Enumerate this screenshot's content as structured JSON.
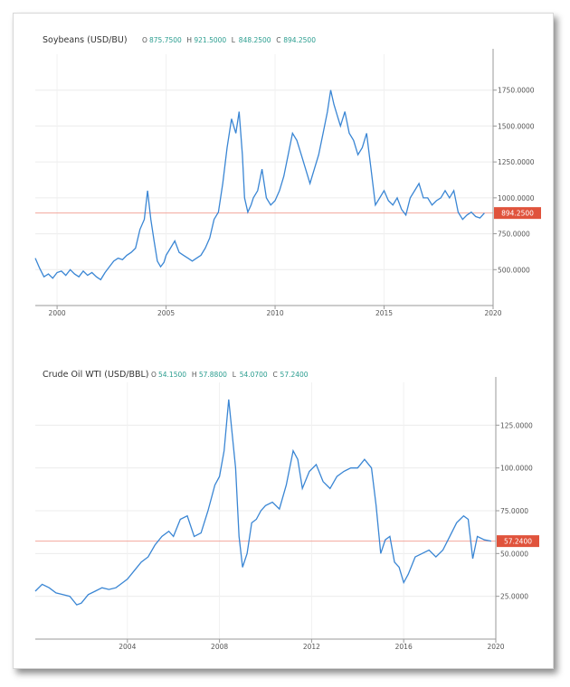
{
  "chart_data": [
    {
      "type": "line",
      "title": "Soybeans (USD/BU)",
      "ohlc": [
        {
          "label": "O",
          "value": "875.7500"
        },
        {
          "label": "H",
          "value": "921.5000"
        },
        {
          "label": "L",
          "value": "848.2500"
        },
        {
          "label": "C",
          "value": "894.2500"
        }
      ],
      "x_ticks": [
        "2000",
        "2005",
        "2010",
        "2015",
        "2020"
      ],
      "y_ticks": [
        "500.0000",
        "750.0000",
        "1000.0000",
        "1250.0000",
        "1500.0000",
        "1750.0000"
      ],
      "xlim": [
        1999.0,
        2020.0
      ],
      "ylim": [
        250,
        2000
      ],
      "last_value_label": "894.2500",
      "last_value": 894.25,
      "grid": true,
      "colors": {
        "line": "#3a86d4",
        "last_line": "#f2a79d",
        "tag": "#e0533c"
      },
      "series": [
        {
          "x": [
            1999.0,
            1999.2,
            1999.4,
            1999.6,
            1999.8,
            2000.0,
            2000.2,
            2000.4,
            2000.6,
            2000.8,
            2001.0,
            2001.2,
            2001.4,
            2001.6,
            2001.8,
            2002.0,
            2002.2,
            2002.4,
            2002.6,
            2002.8,
            2003.0,
            2003.2,
            2003.4,
            2003.6,
            2003.8,
            2004.0,
            2004.15,
            2004.3,
            2004.45,
            2004.6,
            2004.75,
            2004.9,
            2005.0,
            2005.2,
            2005.4,
            2005.6,
            2005.8,
            2006.0,
            2006.2,
            2006.4,
            2006.6,
            2006.8,
            2007.0,
            2007.2,
            2007.4,
            2007.6,
            2007.8,
            2008.0,
            2008.2,
            2008.35,
            2008.5,
            2008.6,
            2008.75,
            2008.9,
            2009.0,
            2009.2,
            2009.4,
            2009.6,
            2009.8,
            2010.0,
            2010.2,
            2010.4,
            2010.6,
            2010.8,
            2011.0,
            2011.2,
            2011.4,
            2011.6,
            2011.8,
            2012.0,
            2012.2,
            2012.4,
            2012.55,
            2012.7,
            2012.9,
            2013.0,
            2013.2,
            2013.4,
            2013.6,
            2013.8,
            2014.0,
            2014.2,
            2014.4,
            2014.6,
            2014.8,
            2015.0,
            2015.2,
            2015.4,
            2015.6,
            2015.8,
            2016.0,
            2016.2,
            2016.4,
            2016.6,
            2016.8,
            2017.0,
            2017.2,
            2017.4,
            2017.6,
            2017.8,
            2018.0,
            2018.2,
            2018.4,
            2018.6,
            2018.8,
            2019.0,
            2019.2,
            2019.4,
            2019.6
          ],
          "y": [
            580,
            510,
            450,
            470,
            440,
            480,
            490,
            460,
            500,
            470,
            450,
            490,
            460,
            480,
            450,
            430,
            480,
            520,
            560,
            580,
            570,
            600,
            620,
            650,
            780,
            850,
            1050,
            850,
            700,
            560,
            520,
            550,
            600,
            650,
            700,
            620,
            600,
            580,
            560,
            580,
            600,
            650,
            720,
            850,
            900,
            1100,
            1350,
            1550,
            1450,
            1600,
            1300,
            1000,
            900,
            950,
            1000,
            1050,
            1200,
            1000,
            950,
            980,
            1050,
            1150,
            1300,
            1450,
            1400,
            1300,
            1200,
            1100,
            1200,
            1300,
            1450,
            1600,
            1750,
            1650,
            1550,
            1500,
            1600,
            1450,
            1400,
            1300,
            1350,
            1450,
            1200,
            950,
            1000,
            1050,
            980,
            950,
            1000,
            920,
            880,
            1000,
            1050,
            1100,
            1000,
            1000,
            950,
            980,
            1000,
            1050,
            1000,
            1050,
            900,
            850,
            880,
            900,
            870,
            860,
            894
          ]
        }
      ]
    },
    {
      "type": "line",
      "title": "Crude Oil WTI (USD/BBL)",
      "ohlc": [
        {
          "label": "O",
          "value": "54.1500"
        },
        {
          "label": "H",
          "value": "57.8800"
        },
        {
          "label": "L",
          "value": "54.0700"
        },
        {
          "label": "C",
          "value": "57.2400"
        }
      ],
      "x_ticks": [
        "2004",
        "2008",
        "2012",
        "2016",
        "2020"
      ],
      "y_ticks": [
        "25.0000",
        "50.0000",
        "75.0000",
        "100.0000",
        "125.0000"
      ],
      "xlim": [
        2000.0,
        2020.0
      ],
      "ylim": [
        0,
        150
      ],
      "last_value_label": "57.2400",
      "last_value": 57.24,
      "grid": true,
      "colors": {
        "line": "#3a86d4",
        "last_line": "#f2a79d",
        "tag": "#e0533c"
      },
      "series": [
        {
          "x": [
            2000.0,
            2000.3,
            2000.6,
            2000.9,
            2001.2,
            2001.5,
            2001.8,
            2002.0,
            2002.3,
            2002.6,
            2002.9,
            2003.2,
            2003.5,
            2003.8,
            2004.0,
            2004.3,
            2004.6,
            2004.9,
            2005.2,
            2005.5,
            2005.8,
            2006.0,
            2006.3,
            2006.6,
            2006.9,
            2007.2,
            2007.5,
            2007.8,
            2008.0,
            2008.2,
            2008.4,
            2008.55,
            2008.7,
            2008.85,
            2009.0,
            2009.2,
            2009.4,
            2009.6,
            2009.8,
            2010.0,
            2010.3,
            2010.6,
            2010.9,
            2011.2,
            2011.4,
            2011.6,
            2011.9,
            2012.2,
            2012.5,
            2012.8,
            2013.1,
            2013.4,
            2013.7,
            2014.0,
            2014.3,
            2014.6,
            2014.8,
            2015.0,
            2015.2,
            2015.4,
            2015.6,
            2015.8,
            2016.0,
            2016.2,
            2016.5,
            2016.8,
            2017.1,
            2017.4,
            2017.7,
            2018.0,
            2018.3,
            2018.6,
            2018.8,
            2019.0,
            2019.2,
            2019.5,
            2019.8
          ],
          "y": [
            28,
            32,
            30,
            27,
            26,
            25,
            20,
            21,
            26,
            28,
            30,
            29,
            30,
            33,
            35,
            40,
            45,
            48,
            55,
            60,
            63,
            60,
            70,
            72,
            60,
            62,
            75,
            90,
            95,
            110,
            140,
            120,
            100,
            60,
            42,
            50,
            68,
            70,
            75,
            78,
            80,
            76,
            90,
            110,
            105,
            88,
            98,
            102,
            92,
            88,
            95,
            98,
            100,
            100,
            105,
            100,
            78,
            50,
            58,
            60,
            45,
            42,
            33,
            38,
            48,
            50,
            52,
            48,
            52,
            60,
            68,
            72,
            70,
            47,
            60,
            58,
            57.24
          ]
        }
      ]
    }
  ]
}
